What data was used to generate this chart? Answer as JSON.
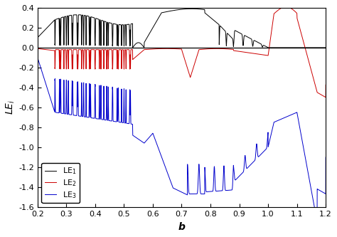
{
  "xlabel": "b",
  "ylabel": "LE_i",
  "xlim": [
    0.2,
    1.2
  ],
  "ylim": [
    -1.6,
    0.4
  ],
  "yticks": [
    -1.6,
    -1.4,
    -1.2,
    -1.0,
    -0.8,
    -0.6,
    -0.4,
    -0.2,
    0.0,
    0.2,
    0.4
  ],
  "xticks": [
    0.2,
    0.3,
    0.4,
    0.5,
    0.6,
    0.7,
    0.8,
    0.9,
    1.0,
    1.1,
    1.2
  ],
  "colors": {
    "LE1": "#000000",
    "LE2": "#cc0000",
    "LE3": "#0000cc"
  },
  "legend_labels": [
    "LE$_1$",
    "LE$_2$",
    "LE$_3$"
  ],
  "hline_y": 0.0,
  "hline_color": "#000000",
  "linewidth": 0.7
}
